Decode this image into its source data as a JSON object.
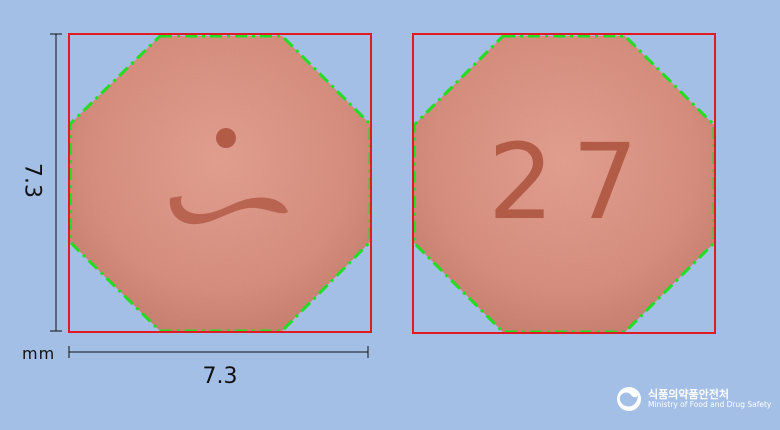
{
  "dimensions": {
    "height": "7.3",
    "width": "7.3",
    "unit": "mm"
  },
  "front_imprint": {
    "icon": "person-symbol-icon"
  },
  "back_imprint": {
    "text": "27"
  },
  "colors": {
    "background": "#a4bfe6",
    "tablet": "#d98c7c",
    "imprint": "#b25c48",
    "bounding_box": "#e01b24",
    "outline": "#22dd22"
  },
  "logo": {
    "korean": "식품의약품안전처",
    "english": "Ministry of Food and Drug Safety"
  }
}
